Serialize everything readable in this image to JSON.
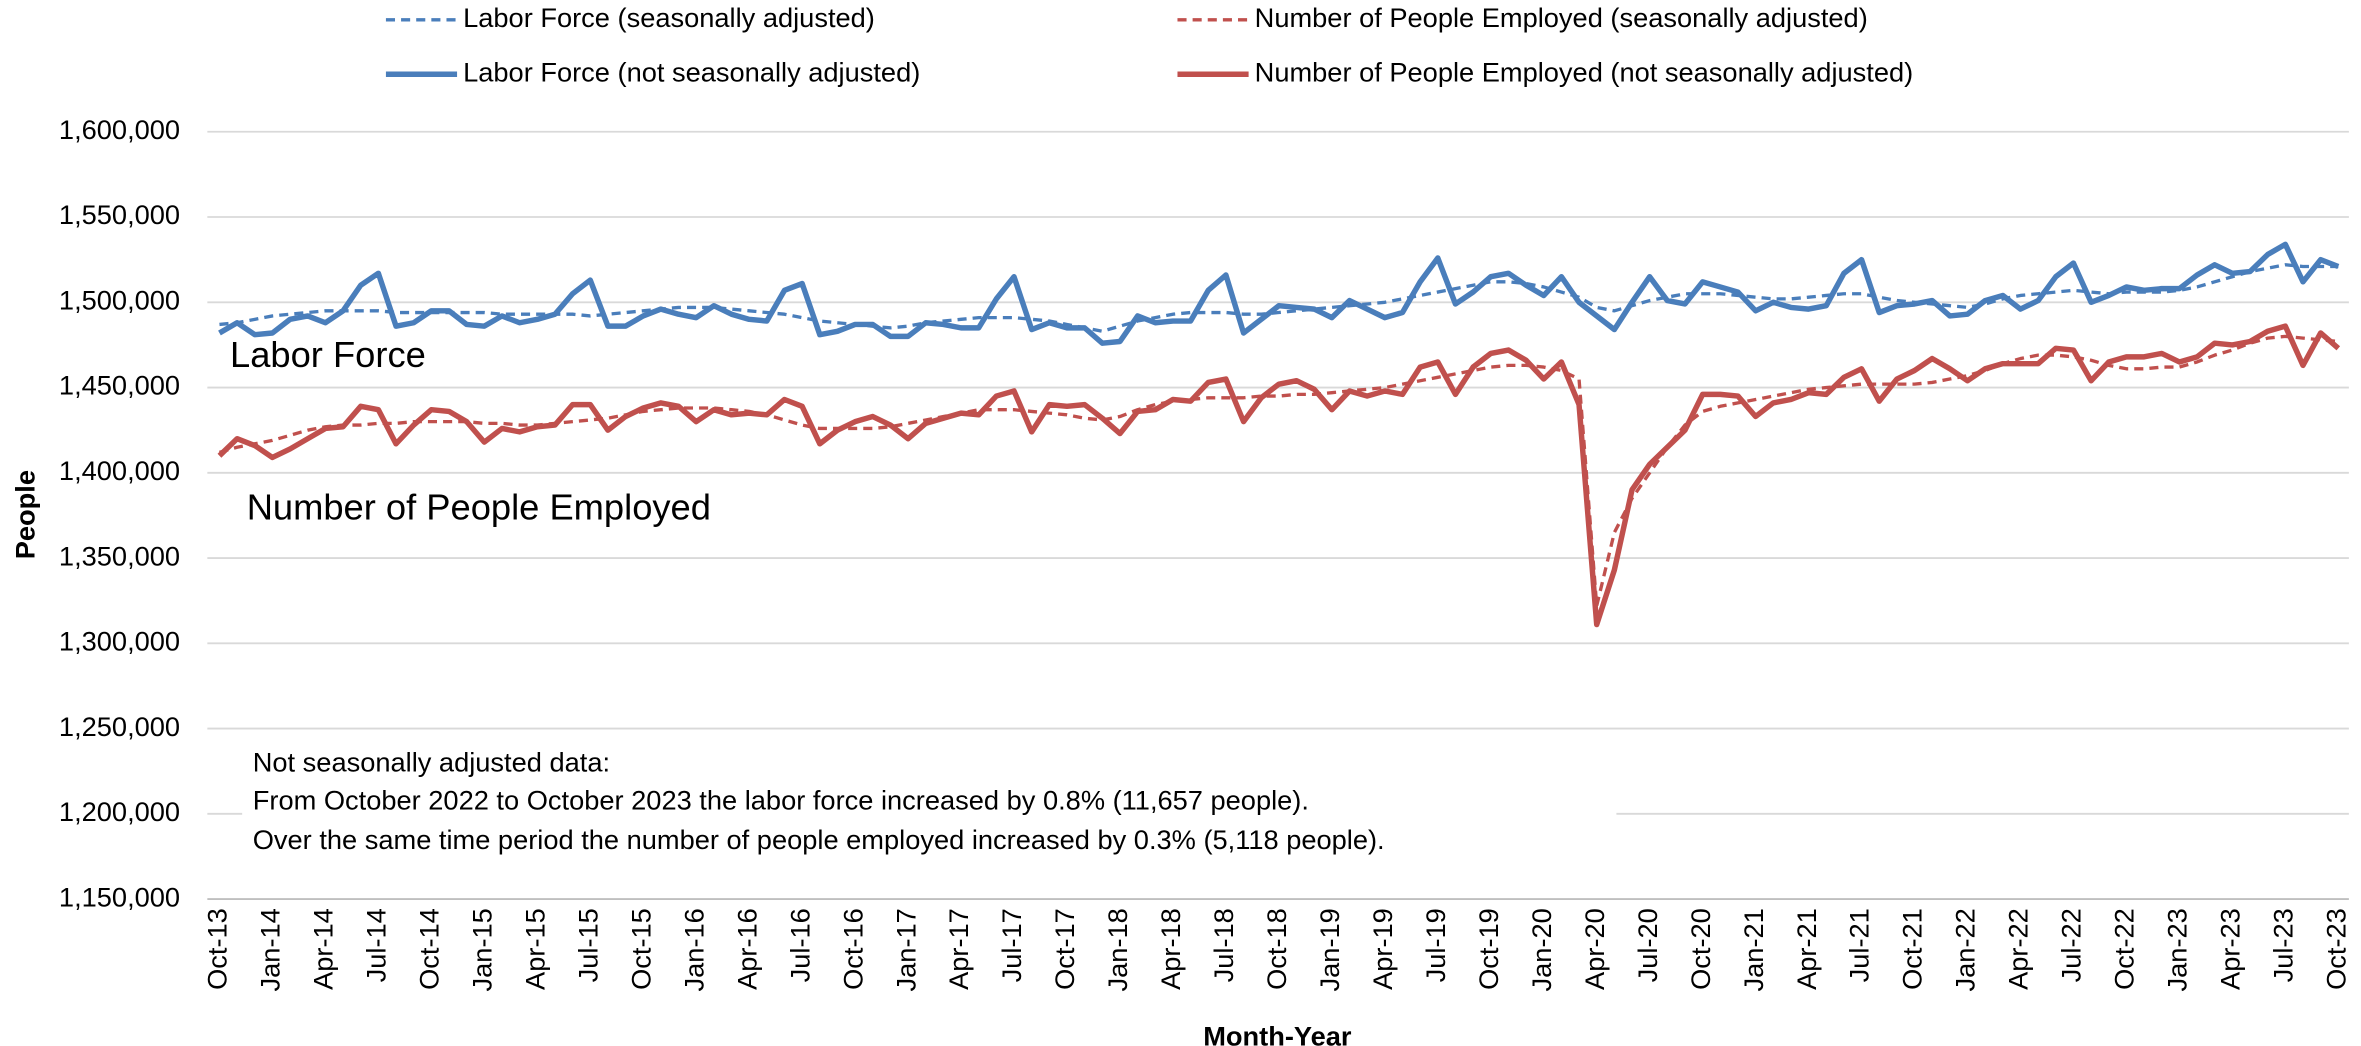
{
  "chart_data": {
    "type": "line",
    "y_label": "People",
    "x_label": "Month-Year",
    "annotations": [
      "Labor Force",
      "Number of People Employed"
    ],
    "note": [
      "Not seasonally adjusted data:",
      "From October 2022 to October 2023 the labor force increased by 0.8% (11,657 people).",
      "Over the same time period the number of people employed increased by 0.3% (5,118 people)."
    ],
    "legend": "top",
    "grid": true,
    "ylim": [
      1150000,
      1600000
    ],
    "yticks": [
      {
        "value": 1150000,
        "label": "1,150,000"
      },
      {
        "value": 1200000,
        "label": "1,200,000"
      },
      {
        "value": 1250000,
        "label": "1,250,000"
      },
      {
        "value": 1300000,
        "label": "1,300,000"
      },
      {
        "value": 1350000,
        "label": "1,350,000"
      },
      {
        "value": 1400000,
        "label": "1,400,000"
      },
      {
        "value": 1450000,
        "label": "1,450,000"
      },
      {
        "value": 1500000,
        "label": "1,500,000"
      },
      {
        "value": 1550000,
        "label": "1,550,000"
      },
      {
        "value": 1600000,
        "label": "1,600,000"
      }
    ],
    "categories": [
      "Oct-13",
      null,
      null,
      "Jan-14",
      null,
      null,
      "Apr-14",
      null,
      null,
      "Jul-14",
      null,
      null,
      "Oct-14",
      null,
      null,
      "Jan-15",
      null,
      null,
      "Apr-15",
      null,
      null,
      "Jul-15",
      null,
      null,
      "Oct-15",
      null,
      null,
      "Jan-16",
      null,
      null,
      "Apr-16",
      null,
      null,
      "Jul-16",
      null,
      null,
      "Oct-16",
      null,
      null,
      "Jan-17",
      null,
      null,
      "Apr-17",
      null,
      null,
      "Jul-17",
      null,
      null,
      "Oct-17",
      null,
      null,
      "Jan-18",
      null,
      null,
      "Apr-18",
      null,
      null,
      "Jul-18",
      null,
      null,
      "Oct-18",
      null,
      null,
      "Jan-19",
      null,
      null,
      "Apr-19",
      null,
      null,
      "Jul-19",
      null,
      null,
      "Oct-19",
      null,
      null,
      "Jan-20",
      null,
      null,
      "Apr-20",
      null,
      null,
      "Jul-20",
      null,
      null,
      "Oct-20",
      null,
      null,
      "Jan-21",
      null,
      null,
      "Apr-21",
      null,
      null,
      "Jul-21",
      null,
      null,
      "Oct-21",
      null,
      null,
      "Jan-22",
      null,
      null,
      "Apr-22",
      null,
      null,
      "Jul-22",
      null,
      null,
      "Oct-22",
      null,
      null,
      "Jan-23",
      null,
      null,
      "Apr-23",
      null,
      null,
      "Jul-23",
      null,
      null,
      "Oct-23"
    ],
    "series": [
      {
        "name": "Labor Force (seasonally adjusted)",
        "color": "#4a7ebb",
        "line_style": "dashed",
        "values": [
          1487000,
          1488000,
          1490000,
          1492000,
          1493000,
          1494000,
          1495000,
          1495000,
          1495000,
          1495000,
          1494000,
          1494000,
          1494000,
          1494000,
          1494000,
          1494000,
          1493000,
          1493000,
          1493000,
          1493000,
          1493000,
          1492000,
          1493000,
          1494000,
          1495000,
          1496000,
          1497000,
          1497000,
          1497000,
          1496000,
          1495000,
          1494000,
          1493000,
          1491000,
          1489000,
          1488000,
          1487000,
          1486000,
          1485000,
          1486000,
          1488000,
          1489000,
          1490000,
          1491000,
          1491000,
          1491000,
          1490000,
          1489000,
          1487000,
          1485000,
          1483000,
          1486000,
          1489000,
          1491000,
          1493000,
          1494000,
          1494000,
          1494000,
          1493000,
          1493000,
          1494000,
          1495000,
          1496000,
          1497000,
          1498000,
          1499000,
          1500000,
          1502000,
          1504000,
          1506000,
          1508000,
          1510000,
          1512000,
          1512000,
          1511000,
          1509000,
          1506000,
          1503000,
          1497000,
          1495000,
          1498000,
          1501000,
          1503000,
          1505000,
          1505000,
          1505000,
          1504000,
          1503000,
          1502000,
          1502000,
          1503000,
          1504000,
          1505000,
          1505000,
          1503000,
          1501000,
          1500000,
          1499000,
          1498000,
          1497000,
          1499000,
          1502000,
          1504000,
          1505000,
          1506000,
          1507000,
          1506000,
          1505000,
          1506000,
          1506000,
          1506000,
          1507000,
          1509000,
          1512000,
          1515000,
          1518000,
          1520000,
          1522000,
          1521000,
          1521000,
          1521000
        ]
      },
      {
        "name": "Number of People Employed (seasonally adjusted)",
        "color": "#c0504d",
        "line_style": "dashed",
        "values": [
          1412000,
          1415000,
          1417000,
          1419000,
          1422000,
          1425000,
          1427000,
          1428000,
          1428000,
          1429000,
          1429000,
          1430000,
          1430000,
          1430000,
          1430000,
          1429000,
          1429000,
          1428000,
          1428000,
          1429000,
          1430000,
          1431000,
          1432000,
          1434000,
          1436000,
          1437000,
          1438000,
          1438000,
          1438000,
          1437000,
          1436000,
          1434000,
          1431000,
          1428000,
          1426000,
          1426000,
          1426000,
          1426000,
          1427000,
          1429000,
          1431000,
          1433000,
          1435000,
          1437000,
          1437000,
          1437000,
          1436000,
          1435000,
          1434000,
          1432000,
          1431000,
          1433000,
          1437000,
          1440000,
          1442000,
          1443000,
          1444000,
          1444000,
          1444000,
          1445000,
          1445000,
          1446000,
          1446000,
          1447000,
          1448000,
          1449000,
          1450000,
          1452000,
          1454000,
          1456000,
          1458000,
          1460000,
          1462000,
          1463000,
          1463000,
          1462000,
          1460000,
          1455000,
          1322000,
          1365000,
          1385000,
          1400000,
          1415000,
          1428000,
          1436000,
          1439000,
          1441000,
          1443000,
          1445000,
          1447000,
          1449000,
          1450000,
          1451000,
          1452000,
          1452000,
          1452000,
          1452000,
          1453000,
          1455000,
          1457000,
          1460000,
          1464000,
          1467000,
          1469000,
          1469000,
          1468000,
          1466000,
          1463000,
          1461000,
          1461000,
          1462000,
          1462000,
          1465000,
          1469000,
          1472000,
          1476000,
          1479000,
          1480000,
          1479000,
          1478000,
          1477000
        ]
      },
      {
        "name": "Labor Force (not seasonally adjusted)",
        "color": "#4a7ebb",
        "line_style": "solid",
        "values": [
          1482000,
          1488000,
          1481000,
          1482000,
          1490000,
          1492000,
          1488000,
          1495000,
          1510000,
          1517000,
          1486000,
          1488000,
          1495000,
          1495000,
          1487000,
          1486000,
          1492000,
          1488000,
          1490000,
          1493000,
          1505000,
          1513000,
          1486000,
          1486000,
          1492000,
          1496000,
          1493000,
          1491000,
          1498000,
          1493000,
          1490000,
          1489000,
          1507000,
          1511000,
          1481000,
          1483000,
          1487000,
          1487000,
          1480000,
          1480000,
          1488000,
          1487000,
          1485000,
          1485000,
          1502000,
          1515000,
          1484000,
          1488000,
          1485000,
          1485000,
          1476000,
          1477000,
          1492000,
          1488000,
          1489000,
          1489000,
          1507000,
          1516000,
          1482000,
          1490000,
          1498000,
          1497000,
          1496000,
          1491000,
          1501000,
          1496000,
          1491000,
          1494000,
          1512000,
          1526000,
          1499000,
          1506000,
          1515000,
          1517000,
          1510000,
          1504000,
          1515000,
          1500000,
          1492000,
          1484000,
          1500000,
          1515000,
          1501000,
          1499000,
          1512000,
          1509000,
          1506000,
          1495000,
          1500000,
          1497000,
          1496000,
          1498000,
          1517000,
          1525000,
          1494000,
          1498000,
          1499000,
          1501000,
          1492000,
          1493000,
          1501000,
          1504000,
          1496000,
          1501000,
          1515000,
          1523000,
          1500000,
          1504000,
          1509000,
          1507000,
          1508000,
          1508000,
          1516000,
          1522000,
          1517000,
          1518000,
          1528000,
          1534000,
          1512000,
          1525000,
          1521000
        ]
      },
      {
        "name": "Number of People Employed (not seasonally adjusted)",
        "color": "#c0504d",
        "line_style": "solid",
        "values": [
          1410000,
          1420000,
          1416000,
          1409000,
          1414000,
          1420000,
          1426000,
          1427000,
          1439000,
          1437000,
          1417000,
          1428000,
          1437000,
          1436000,
          1430000,
          1418000,
          1426000,
          1424000,
          1427000,
          1428000,
          1440000,
          1440000,
          1425000,
          1433000,
          1438000,
          1441000,
          1439000,
          1430000,
          1437000,
          1434000,
          1435000,
          1434000,
          1443000,
          1439000,
          1417000,
          1425000,
          1430000,
          1433000,
          1428000,
          1420000,
          1429000,
          1432000,
          1435000,
          1434000,
          1445000,
          1448000,
          1424000,
          1440000,
          1439000,
          1440000,
          1432000,
          1423000,
          1436000,
          1437000,
          1443000,
          1442000,
          1453000,
          1455000,
          1430000,
          1444000,
          1452000,
          1454000,
          1449000,
          1437000,
          1448000,
          1445000,
          1448000,
          1446000,
          1462000,
          1465000,
          1446000,
          1462000,
          1470000,
          1472000,
          1466000,
          1455000,
          1465000,
          1440000,
          1311000,
          1343000,
          1390000,
          1405000,
          1415000,
          1425000,
          1446000,
          1446000,
          1445000,
          1433000,
          1441000,
          1443000,
          1447000,
          1446000,
          1456000,
          1461000,
          1442000,
          1455000,
          1460000,
          1467000,
          1461000,
          1454000,
          1461000,
          1464000,
          1464000,
          1464000,
          1473000,
          1472000,
          1454000,
          1465000,
          1468000,
          1468000,
          1470000,
          1465000,
          1468000,
          1476000,
          1475000,
          1477000,
          1483000,
          1486000,
          1463000,
          1482000,
          1473000
        ]
      }
    ]
  }
}
